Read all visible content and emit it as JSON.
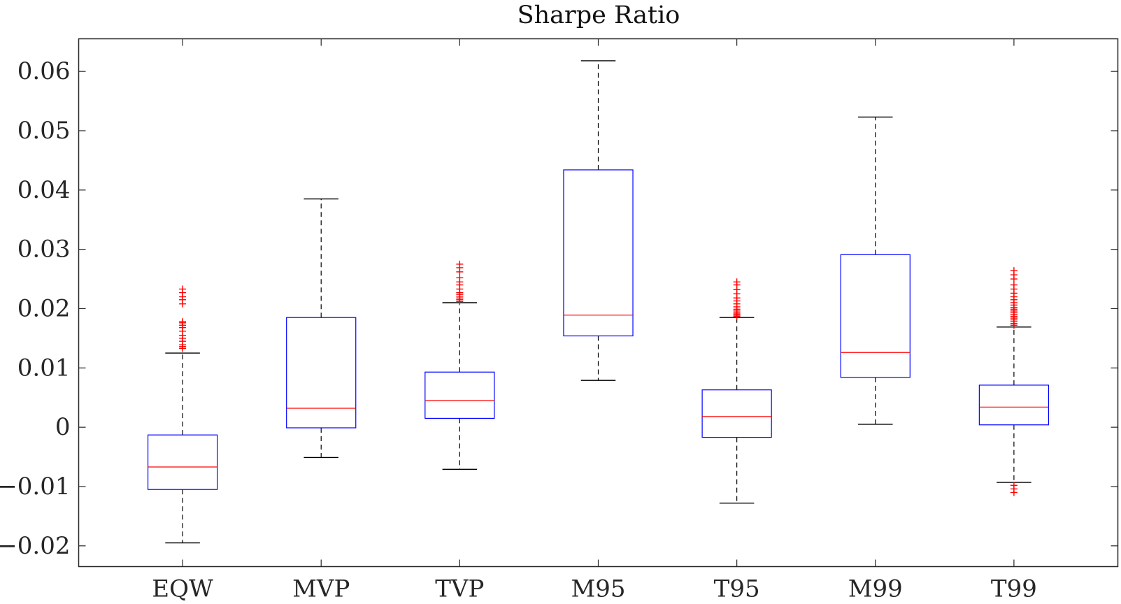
{
  "chart_data": {
    "type": "boxplot",
    "title": "Sharpe Ratio",
    "xlabel": "",
    "ylabel": "",
    "categories": [
      "EQW",
      "MVP",
      "TVP",
      "M95",
      "T95",
      "M99",
      "T99"
    ],
    "ylim": [
      -0.0235,
      0.0655
    ],
    "yticks": [
      -0.02,
      -0.01,
      0,
      0.01,
      0.02,
      0.03,
      0.04,
      0.05,
      0.06
    ],
    "ytick_labels": [
      "−0.02",
      "−0.01",
      "0",
      "0.01",
      "0.02",
      "0.03",
      "0.04",
      "0.05",
      "0.06"
    ],
    "grid": false,
    "colors": {
      "box": "#0000ff",
      "median": "#ff0000",
      "whisker": "#000000",
      "outlier": "#ff0000",
      "axis": "#262626"
    },
    "boxes": [
      {
        "name": "EQW",
        "whisker_low": -0.0195,
        "q1": -0.0105,
        "median": -0.0067,
        "q3": -0.0013,
        "whisker_high": 0.0125,
        "outliers": [
          0.0133,
          0.0136,
          0.0139,
          0.0145,
          0.015,
          0.0155,
          0.0162,
          0.0168,
          0.0172,
          0.0176,
          0.0178,
          0.0208,
          0.0215,
          0.022,
          0.0227,
          0.0233
        ]
      },
      {
        "name": "MVP",
        "whisker_low": -0.0051,
        "q1": -0.0001,
        "median": 0.0032,
        "q3": 0.0185,
        "whisker_high": 0.0385,
        "outliers": []
      },
      {
        "name": "TVP",
        "whisker_low": -0.0071,
        "q1": 0.0015,
        "median": 0.0045,
        "q3": 0.0093,
        "whisker_high": 0.021,
        "outliers": [
          0.0212,
          0.0215,
          0.0218,
          0.0221,
          0.0224,
          0.0227,
          0.0233,
          0.024,
          0.0245,
          0.0252,
          0.0262,
          0.0269,
          0.0275
        ]
      },
      {
        "name": "M95",
        "whisker_low": 0.0079,
        "q1": 0.0154,
        "median": 0.0189,
        "q3": 0.0434,
        "whisker_high": 0.0618,
        "outliers": []
      },
      {
        "name": "T95",
        "whisker_low": -0.0128,
        "q1": -0.0017,
        "median": 0.0018,
        "q3": 0.0063,
        "whisker_high": 0.0185,
        "outliers": [
          0.0187,
          0.0189,
          0.0191,
          0.0193,
          0.0196,
          0.0199,
          0.0203,
          0.0208,
          0.0213,
          0.0218,
          0.0225,
          0.0232,
          0.024,
          0.0245
        ]
      },
      {
        "name": "M99",
        "whisker_low": 0.0005,
        "q1": 0.0084,
        "median": 0.0126,
        "q3": 0.0291,
        "whisker_high": 0.0523,
        "outliers": []
      },
      {
        "name": "T99",
        "whisker_low": -0.0093,
        "q1": 0.0004,
        "median": 0.0034,
        "q3": 0.0071,
        "whisker_high": 0.0169,
        "outliers": [
          -0.011,
          -0.0104,
          -0.0098,
          0.0172,
          0.0175,
          0.0178,
          0.0181,
          0.0184,
          0.0187,
          0.019,
          0.0193,
          0.0196,
          0.0199,
          0.0202,
          0.0206,
          0.021,
          0.0215,
          0.022,
          0.0226,
          0.0233,
          0.024,
          0.025,
          0.0257,
          0.0264
        ]
      }
    ]
  }
}
